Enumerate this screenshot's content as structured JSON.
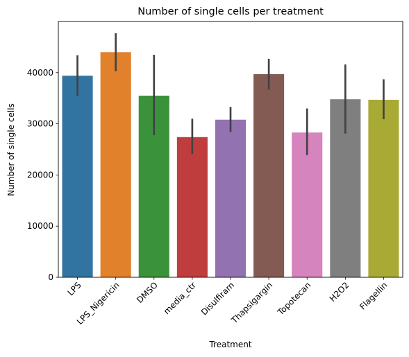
{
  "chart_data": {
    "type": "bar",
    "title": "Number of single cells per treatment",
    "xlabel": "Treatment",
    "ylabel": "Number of single cells",
    "categories": [
      "LPS",
      "LPS_Nigericin",
      "DMSO",
      "media_ctr",
      "Disulfiram",
      "Thapsigargin",
      "Topotecan",
      "H2O2",
      "Flagellin"
    ],
    "values": [
      39400,
      44000,
      35500,
      27400,
      30800,
      39700,
      28300,
      34800,
      34700
    ],
    "error_low": [
      35500,
      40300,
      27800,
      24100,
      28400,
      36700,
      23900,
      28100,
      30900
    ],
    "error_high": [
      43400,
      47700,
      43500,
      31000,
      33300,
      42700,
      33000,
      41600,
      38700
    ],
    "ylim": [
      0,
      50000
    ],
    "yticks": [
      0,
      10000,
      20000,
      30000,
      40000
    ],
    "colors": [
      "#3274a1",
      "#e1812c",
      "#3a923a",
      "#c03d3e",
      "#9372b2",
      "#845b53",
      "#d684bd",
      "#7f7f7f",
      "#a9aa35"
    ],
    "error_color": "#424242",
    "grid": false
  }
}
